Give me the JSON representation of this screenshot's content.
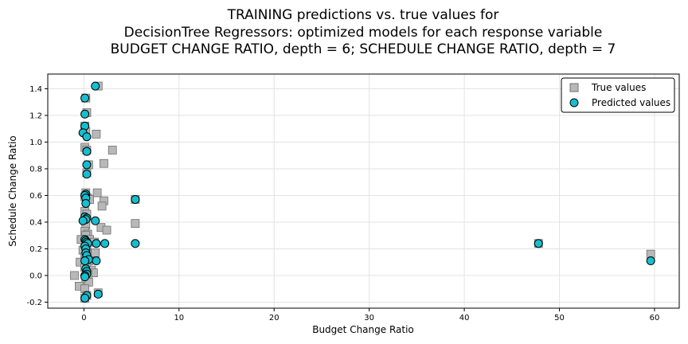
{
  "chart_data": {
    "type": "scatter",
    "title": [
      "TRAINING predictions vs. true values for",
      "DecisionTree Regressors: optimized models for each response variable",
      "BUDGET CHANGE RATIO, depth = 6; SCHEDULE CHANGE RATIO, depth = 7"
    ],
    "xlabel": "Budget Change Ratio",
    "ylabel": "Schedule Change Ratio",
    "xlim": [
      -3.8,
      62.6
    ],
    "ylim": [
      -0.245,
      1.51
    ],
    "xticks": [
      0,
      10,
      20,
      30,
      40,
      50,
      60
    ],
    "yticks": [
      -0.2,
      0.0,
      0.2,
      0.4,
      0.6,
      0.8,
      1.0,
      1.2,
      1.4
    ],
    "grid": true,
    "legend_position": "top-right",
    "series": [
      {
        "name": "True values",
        "marker": "square",
        "color": "#b8b8b8",
        "edge_color": "#707070",
        "x": [
          1.5,
          0.2,
          0.3,
          0.1,
          0.2,
          1.3,
          0.1,
          0.3,
          3.0,
          0.5,
          2.1,
          0.3,
          0.2,
          1.4,
          0.1,
          0.4,
          0.6,
          2.1,
          1.9,
          0.1,
          0.3,
          5.4,
          1.8,
          0.2,
          5.4,
          2.4,
          0.1,
          0.4,
          0.2,
          -0.3,
          0.6,
          1.1,
          0.3,
          0.1,
          -0.1,
          0.4,
          0.6,
          0.3,
          0.1,
          1.2,
          0.2,
          -0.4,
          0.5,
          0.3,
          0.1,
          0.8,
          1.0,
          0.4,
          -1.0,
          0.2,
          0.5,
          -0.5,
          0.1,
          1.5,
          0.1,
          0.3,
          47.8,
          59.6
        ],
        "y": [
          1.42,
          1.33,
          1.22,
          1.12,
          1.08,
          1.06,
          0.96,
          0.94,
          0.94,
          0.83,
          0.84,
          0.77,
          0.62,
          0.62,
          0.59,
          0.58,
          0.57,
          0.56,
          0.52,
          0.48,
          0.46,
          0.57,
          0.36,
          0.38,
          0.39,
          0.34,
          0.33,
          0.31,
          0.3,
          0.27,
          0.27,
          0.25,
          0.23,
          0.21,
          0.19,
          0.17,
          0.15,
          0.16,
          0.14,
          0.17,
          0.12,
          0.1,
          0.11,
          0.08,
          0.06,
          0.04,
          0.02,
          0.01,
          0.0,
          -0.03,
          -0.05,
          -0.08,
          -0.1,
          -0.13,
          -0.17,
          -0.15,
          0.24,
          0.16
        ]
      },
      {
        "name": "Predicted values",
        "marker": "circle",
        "color": "#17becf",
        "edge_color": "#000000",
        "x": [
          1.2,
          0.1,
          0.1,
          0.1,
          -0.1,
          0.3,
          0.3,
          0.3,
          0.3,
          0.3,
          0.2,
          0.1,
          0.2,
          0.2,
          5.4,
          0.1,
          0.3,
          0.2,
          1.2,
          -0.1,
          0.1,
          0.2,
          0.3,
          0.4,
          1.3,
          2.2,
          5.4,
          0.1,
          0.2,
          0.2,
          0.3,
          0.5,
          1.3,
          0.1,
          0.2,
          0.3,
          0.3,
          0.1,
          0.1,
          1.5,
          0.3,
          0.1,
          47.8,
          59.6
        ],
        "y": [
          1.42,
          1.33,
          1.21,
          1.12,
          1.07,
          1.04,
          0.93,
          0.93,
          0.83,
          0.76,
          0.61,
          0.6,
          0.58,
          0.54,
          0.57,
          0.44,
          0.43,
          0.42,
          0.41,
          0.41,
          0.27,
          0.26,
          0.25,
          0.24,
          0.24,
          0.24,
          0.24,
          0.22,
          0.2,
          0.17,
          0.15,
          0.12,
          0.11,
          0.11,
          0.05,
          0.03,
          0.01,
          0.0,
          -0.01,
          -0.14,
          -0.15,
          -0.17,
          0.24,
          0.11
        ]
      }
    ]
  }
}
